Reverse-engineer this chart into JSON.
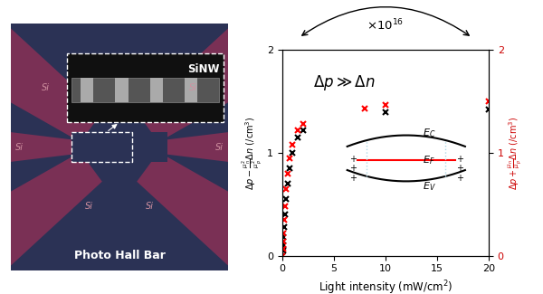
{
  "black_x_data": [
    0.0,
    0.05,
    0.08,
    0.12,
    0.18,
    0.25,
    0.35,
    0.5,
    0.7,
    1.0,
    1.5,
    2.0,
    10.0,
    20.0
  ],
  "black_y_data": [
    0.0,
    0.05,
    0.1,
    0.18,
    0.28,
    0.4,
    0.55,
    0.7,
    0.85,
    1.0,
    1.15,
    1.22,
    1.4,
    1.42
  ],
  "red_x_data": [
    0.0,
    0.05,
    0.08,
    0.12,
    0.18,
    0.25,
    0.35,
    0.5,
    0.7,
    1.0,
    1.5,
    2.0,
    8.0,
    10.0,
    20.0
  ],
  "red_y_data": [
    0.0,
    0.07,
    0.14,
    0.22,
    0.35,
    0.48,
    0.65,
    0.8,
    0.95,
    1.08,
    1.22,
    1.28,
    1.43,
    1.47,
    1.5
  ],
  "xlabel": "Light intensity (mW/cm$^2$)",
  "ylabel_left": "$\\Delta p - \\frac{\\mu_n^2}{\\mu_p^2}\\Delta n$ (/cm$^3$)",
  "ylabel_right": "$\\Delta p + \\frac{\\mu_n}{\\mu_p}\\Delta n$ (/cm$^3$)",
  "annotation_text": "$\\Delta p \\gg \\Delta n$",
  "scale_text": "$\\times 10^{16}$",
  "xlim": [
    0,
    20
  ],
  "ylim": [
    0,
    2
  ],
  "yticks": [
    0,
    1,
    2
  ],
  "xticks": [
    0,
    5,
    10,
    15,
    20
  ],
  "left_color": "#000000",
  "right_color": "#cc0000",
  "bg_color": "#ffffff",
  "arm_color": "#7a3055",
  "bg_dark": "#2b3255",
  "inset_bg": "#101010"
}
